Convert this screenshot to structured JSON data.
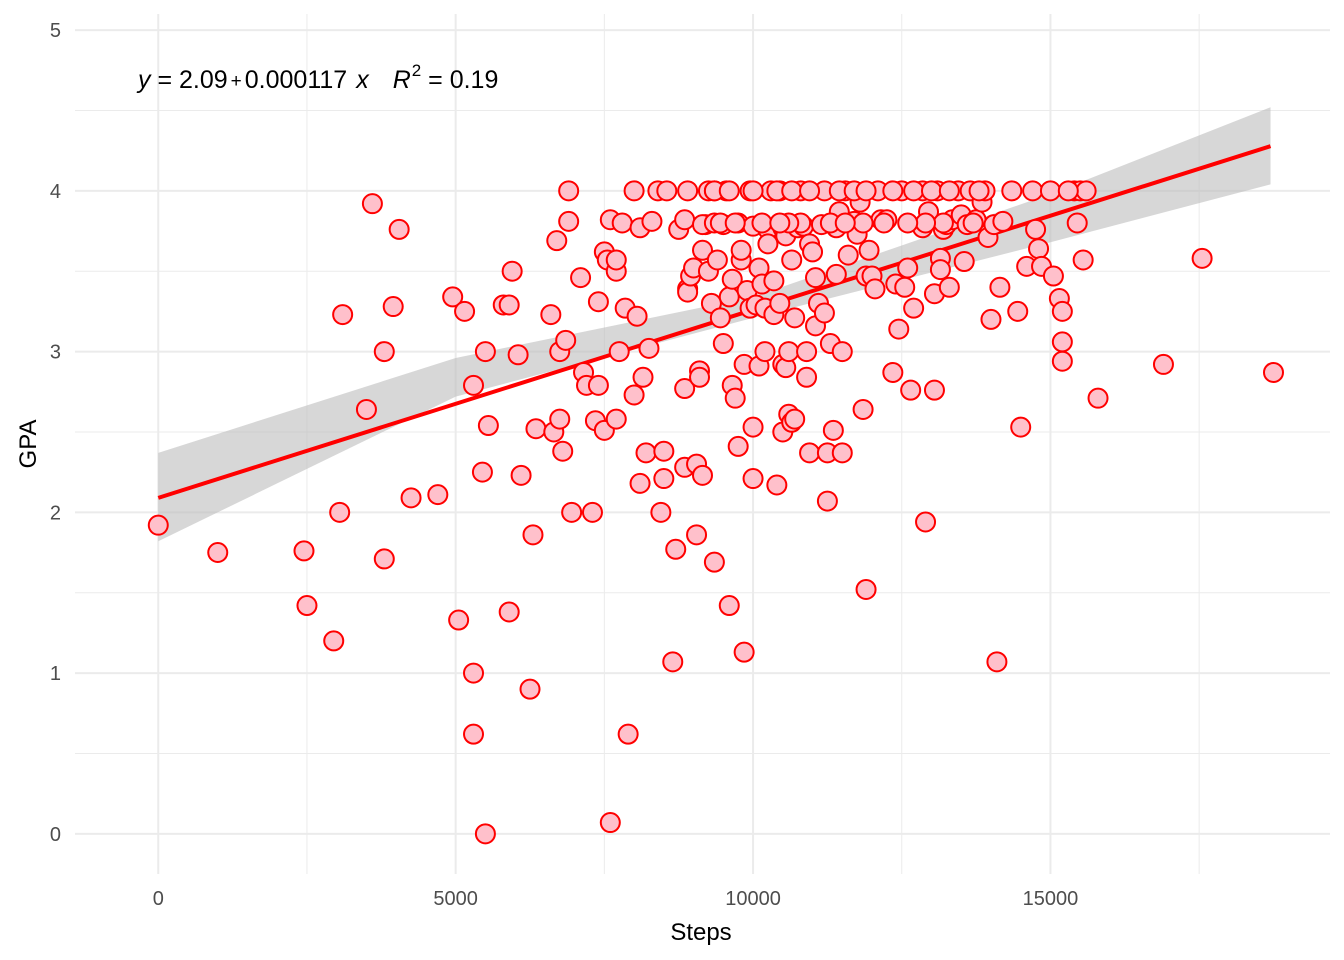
{
  "chart_data": {
    "type": "scatter",
    "title": "",
    "xlabel": "Steps",
    "ylabel": "GPA",
    "xlim": [
      -1400,
      19700
    ],
    "ylim": [
      -0.25,
      5.1
    ],
    "x_ticks": [
      0,
      5000,
      10000,
      15000
    ],
    "x_tick_labels": [
      "0",
      "5000",
      "10000",
      "15000"
    ],
    "y_ticks": [
      0,
      1,
      2,
      3,
      4,
      5
    ],
    "y_tick_labels": [
      "0",
      "1",
      "2",
      "3",
      "4",
      "5"
    ],
    "grid": true,
    "legend": "none",
    "colors": {
      "point_stroke": "#ff0000",
      "point_fill": "#ffc0cb",
      "line": "#ff0000",
      "band": "#bebebe",
      "grid": "#ebebeb"
    },
    "equation": {
      "y_var": "y",
      "eq": " = 2.09",
      "plus": "+",
      "coef": "0.000117",
      "x_var": "x",
      "r_var": "R",
      "r_exp": "2",
      "r_val": " = 0.19"
    },
    "regression": {
      "intercept": 2.09,
      "slope": 0.000117,
      "r_squared": 0.19,
      "x_range": [
        0,
        18700
      ],
      "band_upper": [
        [
          0,
          2.37
        ],
        [
          5000,
          2.96
        ],
        [
          10000,
          3.34
        ],
        [
          15000,
          3.98
        ],
        [
          18700,
          4.52
        ]
      ],
      "band_lower": [
        [
          0,
          1.82
        ],
        [
          5000,
          2.72
        ],
        [
          10000,
          3.21
        ],
        [
          15000,
          3.68
        ],
        [
          18700,
          4.04
        ]
      ]
    },
    "points": [
      [
        0,
        1.92
      ],
      [
        1000,
        1.75
      ],
      [
        2450,
        1.76
      ],
      [
        2500,
        1.42
      ],
      [
        2950,
        1.2
      ],
      [
        3050,
        2.0
      ],
      [
        3100,
        3.23
      ],
      [
        3500,
        2.64
      ],
      [
        3600,
        3.92
      ],
      [
        3800,
        3.0
      ],
      [
        3800,
        1.71
      ],
      [
        3950,
        3.28
      ],
      [
        4050,
        3.76
      ],
      [
        4250,
        2.09
      ],
      [
        4700,
        2.11
      ],
      [
        4950,
        3.34
      ],
      [
        5050,
        1.33
      ],
      [
        5150,
        3.25
      ],
      [
        5300,
        2.79
      ],
      [
        5300,
        1.0
      ],
      [
        5300,
        0.62
      ],
      [
        5450,
        2.25
      ],
      [
        5500,
        3.0
      ],
      [
        5500,
        0.0
      ],
      [
        5550,
        2.54
      ],
      [
        5800,
        3.29
      ],
      [
        5900,
        3.29
      ],
      [
        5900,
        1.38
      ],
      [
        5950,
        3.5
      ],
      [
        6050,
        2.98
      ],
      [
        6100,
        2.23
      ],
      [
        6250,
        0.9
      ],
      [
        6300,
        1.86
      ],
      [
        6350,
        2.52
      ],
      [
        6600,
        3.23
      ],
      [
        6650,
        2.5
      ],
      [
        6700,
        3.69
      ],
      [
        6750,
        3.0
      ],
      [
        6750,
        2.58
      ],
      [
        6800,
        2.38
      ],
      [
        6850,
        3.07
      ],
      [
        6900,
        4.0
      ],
      [
        6900,
        3.81
      ],
      [
        6950,
        2.0
      ],
      [
        7100,
        3.46
      ],
      [
        7150,
        2.87
      ],
      [
        7200,
        2.79
      ],
      [
        7300,
        2.0
      ],
      [
        7350,
        2.57
      ],
      [
        7400,
        2.79
      ],
      [
        7400,
        3.31
      ],
      [
        7500,
        3.62
      ],
      [
        7500,
        2.51
      ],
      [
        7550,
        3.57
      ],
      [
        7600,
        3.82
      ],
      [
        7600,
        0.07
      ],
      [
        7700,
        3.5
      ],
      [
        7700,
        2.58
      ],
      [
        7700,
        3.57
      ],
      [
        7750,
        3.0
      ],
      [
        7800,
        3.8
      ],
      [
        7850,
        3.27
      ],
      [
        7900,
        0.62
      ],
      [
        8000,
        4.0
      ],
      [
        8000,
        2.73
      ],
      [
        8050,
        3.22
      ],
      [
        8100,
        3.77
      ],
      [
        8100,
        2.18
      ],
      [
        8150,
        2.84
      ],
      [
        8200,
        2.37
      ],
      [
        8250,
        3.02
      ],
      [
        8300,
        3.81
      ],
      [
        8400,
        4.0
      ],
      [
        8450,
        2.0
      ],
      [
        8500,
        2.38
      ],
      [
        8500,
        2.21
      ],
      [
        8550,
        4.0
      ],
      [
        8650,
        1.07
      ],
      [
        8700,
        1.77
      ],
      [
        8750,
        3.76
      ],
      [
        8850,
        2.28
      ],
      [
        8850,
        2.77
      ],
      [
        8850,
        3.82
      ],
      [
        8900,
        3.39
      ],
      [
        8900,
        3.37
      ],
      [
        8900,
        4.0
      ],
      [
        8950,
        3.47
      ],
      [
        9000,
        3.52
      ],
      [
        9050,
        2.3
      ],
      [
        9050,
        1.86
      ],
      [
        9100,
        2.88
      ],
      [
        9100,
        2.84
      ],
      [
        9150,
        2.23
      ],
      [
        9150,
        3.63
      ],
      [
        9200,
        3.79
      ],
      [
        9250,
        3.5
      ],
      [
        9250,
        4.0
      ],
      [
        9300,
        3.3
      ],
      [
        9350,
        4.0
      ],
      [
        9350,
        1.69
      ],
      [
        9400,
        3.57
      ],
      [
        9450,
        3.21
      ],
      [
        9500,
        3.05
      ],
      [
        9500,
        3.79
      ],
      [
        9550,
        4.0
      ],
      [
        9600,
        3.34
      ],
      [
        9600,
        1.42
      ],
      [
        9650,
        3.45
      ],
      [
        9650,
        2.79
      ],
      [
        9700,
        2.71
      ],
      [
        9750,
        3.8
      ],
      [
        9750,
        2.41
      ],
      [
        9800,
        3.57
      ],
      [
        9800,
        3.63
      ],
      [
        9850,
        1.13
      ],
      [
        9850,
        2.92
      ],
      [
        9900,
        3.38
      ],
      [
        9950,
        4.0
      ],
      [
        9950,
        3.27
      ],
      [
        10000,
        3.78
      ],
      [
        10000,
        2.53
      ],
      [
        10000,
        2.21
      ],
      [
        10050,
        3.29
      ],
      [
        10100,
        3.52
      ],
      [
        10100,
        2.91
      ],
      [
        10150,
        3.42
      ],
      [
        10200,
        3.27
      ],
      [
        10200,
        3.0
      ],
      [
        10250,
        3.76
      ],
      [
        10250,
        3.67
      ],
      [
        10300,
        4.0
      ],
      [
        10350,
        3.44
      ],
      [
        10350,
        3.23
      ],
      [
        10400,
        2.17
      ],
      [
        10450,
        4.0
      ],
      [
        10450,
        3.3
      ],
      [
        10500,
        3.77
      ],
      [
        10500,
        2.92
      ],
      [
        10500,
        2.5
      ],
      [
        10550,
        3.72
      ],
      [
        10550,
        2.9
      ],
      [
        10600,
        3.0
      ],
      [
        10600,
        2.61
      ],
      [
        10650,
        3.57
      ],
      [
        10650,
        2.56
      ],
      [
        10700,
        3.21
      ],
      [
        10700,
        2.58
      ],
      [
        10750,
        3.77
      ],
      [
        10800,
        4.0
      ],
      [
        10850,
        3.78
      ],
      [
        10900,
        2.84
      ],
      [
        10900,
        3.0
      ],
      [
        10950,
        3.67
      ],
      [
        10950,
        2.37
      ],
      [
        11000,
        3.62
      ],
      [
        11050,
        3.46
      ],
      [
        11050,
        3.16
      ],
      [
        11100,
        3.3
      ],
      [
        11150,
        3.79
      ],
      [
        11200,
        3.24
      ],
      [
        11200,
        4.0
      ],
      [
        11250,
        2.37
      ],
      [
        11250,
        2.07
      ],
      [
        11300,
        3.05
      ],
      [
        11350,
        2.51
      ],
      [
        11400,
        3.48
      ],
      [
        11400,
        3.77
      ],
      [
        11450,
        3.87
      ],
      [
        11500,
        2.37
      ],
      [
        11500,
        3.0
      ],
      [
        11550,
        4.0
      ],
      [
        11600,
        3.6
      ],
      [
        11700,
        3.81
      ],
      [
        11750,
        3.73
      ],
      [
        11800,
        3.93
      ],
      [
        11850,
        2.64
      ],
      [
        11900,
        1.52
      ],
      [
        11900,
        3.47
      ],
      [
        11950,
        3.63
      ],
      [
        12000,
        3.47
      ],
      [
        12050,
        3.39
      ],
      [
        12100,
        4.0
      ],
      [
        12150,
        3.82
      ],
      [
        12250,
        3.82
      ],
      [
        12350,
        2.87
      ],
      [
        12400,
        3.42
      ],
      [
        12450,
        3.14
      ],
      [
        12500,
        4.0
      ],
      [
        12550,
        3.4
      ],
      [
        12600,
        3.52
      ],
      [
        12650,
        2.76
      ],
      [
        12700,
        3.27
      ],
      [
        12850,
        3.77
      ],
      [
        12850,
        4.0
      ],
      [
        12900,
        1.94
      ],
      [
        12950,
        3.87
      ],
      [
        13050,
        3.36
      ],
      [
        13050,
        2.76
      ],
      [
        13100,
        4.0
      ],
      [
        13150,
        3.58
      ],
      [
        13150,
        3.51
      ],
      [
        13200,
        3.76
      ],
      [
        13250,
        3.79
      ],
      [
        13300,
        3.4
      ],
      [
        13350,
        3.82
      ],
      [
        13450,
        4.0
      ],
      [
        13500,
        3.85
      ],
      [
        13550,
        3.56
      ],
      [
        13600,
        3.79
      ],
      [
        13650,
        4.0
      ],
      [
        13750,
        3.82
      ],
      [
        13850,
        3.93
      ],
      [
        13900,
        4.0
      ],
      [
        13950,
        3.71
      ],
      [
        14000,
        3.2
      ],
      [
        14050,
        3.79
      ],
      [
        14100,
        1.07
      ],
      [
        14150,
        3.4
      ],
      [
        14200,
        3.81
      ],
      [
        14350,
        4.0
      ],
      [
        14450,
        3.25
      ],
      [
        14500,
        2.53
      ],
      [
        14600,
        3.53
      ],
      [
        14700,
        4.0
      ],
      [
        14750,
        3.76
      ],
      [
        14800,
        3.64
      ],
      [
        14850,
        3.53
      ],
      [
        15000,
        4.0
      ],
      [
        15050,
        3.47
      ],
      [
        15150,
        3.33
      ],
      [
        15200,
        3.25
      ],
      [
        15200,
        3.06
      ],
      [
        15200,
        2.94
      ],
      [
        15400,
        4.0
      ],
      [
        15450,
        3.8
      ],
      [
        15500,
        4.0
      ],
      [
        15550,
        3.57
      ],
      [
        15600,
        4.0
      ],
      [
        15800,
        2.71
      ],
      [
        16900,
        2.92
      ],
      [
        17550,
        3.58
      ],
      [
        18750,
        2.87
      ],
      [
        9350,
        4.0
      ],
      [
        9600,
        4.0
      ],
      [
        10000,
        4.0
      ],
      [
        10400,
        4.0
      ],
      [
        10650,
        4.0
      ],
      [
        10950,
        4.0
      ],
      [
        11450,
        4.0
      ],
      [
        11700,
        4.0
      ],
      [
        11900,
        4.0
      ],
      [
        12350,
        4.0
      ],
      [
        12700,
        4.0
      ],
      [
        13000,
        4.0
      ],
      [
        13300,
        4.0
      ],
      [
        13800,
        4.0
      ],
      [
        15300,
        4.0
      ],
      [
        9150,
        3.79
      ],
      [
        9350,
        3.8
      ],
      [
        10150,
        3.8
      ],
      [
        10800,
        3.8
      ],
      [
        11300,
        3.8
      ],
      [
        12200,
        3.8
      ],
      [
        13200,
        3.8
      ],
      [
        9450,
        3.8
      ],
      [
        10600,
        3.8
      ],
      [
        11850,
        3.8
      ],
      [
        12900,
        3.8
      ],
      [
        13700,
        3.8
      ],
      [
        9700,
        3.8
      ],
      [
        10450,
        3.8
      ],
      [
        11550,
        3.8
      ],
      [
        12600,
        3.8
      ]
    ]
  }
}
